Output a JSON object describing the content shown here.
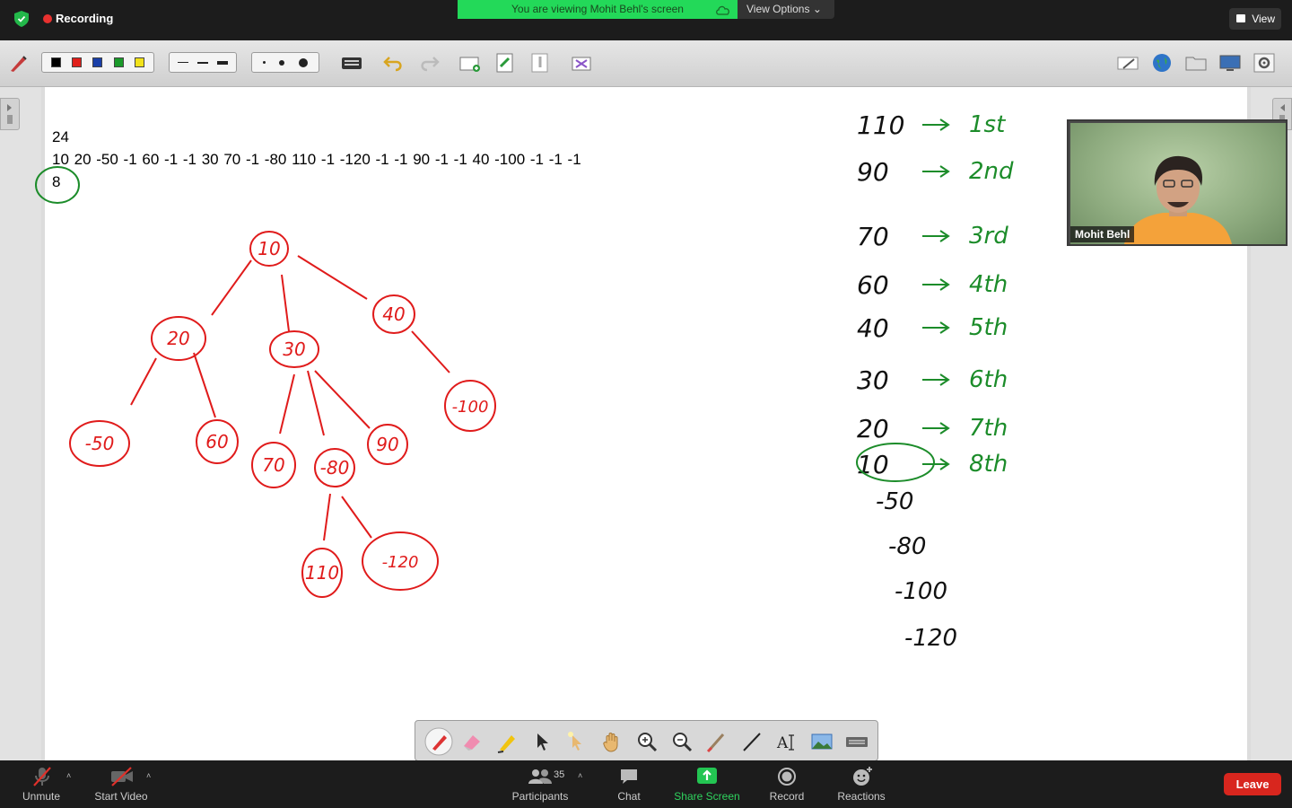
{
  "topbar": {
    "recording_label": "Recording",
    "viewing_banner": "You are viewing Mohit Behl's screen",
    "view_options_label": "View Options ⌄",
    "view_button_label": "View"
  },
  "toolbar": {
    "colors": [
      "#000000",
      "#e0201b",
      "#1a3fa8",
      "#1a9a2a",
      "#f2e21a"
    ],
    "line_widths": [
      "thin",
      "medium",
      "thick"
    ],
    "dot_sizes": [
      "small",
      "medium",
      "large"
    ]
  },
  "whiteboard": {
    "count_text": "24",
    "input_text": "10 20 -50 -1 60 -1 -1 30 70 -1 -80 110 -1 -120 -1 -1 90 -1 -1 40 -100 -1 -1 -1",
    "k_text": "8",
    "tree_nodes": [
      "10",
      "20",
      "30",
      "40",
      "-50",
      "60",
      "70",
      "-80",
      "90",
      "-100",
      "110",
      "-120"
    ],
    "ranking": [
      {
        "value": "110",
        "rank": "1st"
      },
      {
        "value": "90",
        "rank": "2nd"
      },
      {
        "value": "70",
        "rank": "3rd"
      },
      {
        "value": "60",
        "rank": "4th"
      },
      {
        "value": "40",
        "rank": "5th"
      },
      {
        "value": "30",
        "rank": "6th"
      },
      {
        "value": "20",
        "rank": "7th"
      },
      {
        "value": "10",
        "rank": "8th"
      }
    ],
    "remaining": [
      "-50",
      "-80",
      "-100",
      "-120"
    ],
    "ink_red": "#e01b1b",
    "ink_green": "#1c8c2a"
  },
  "video": {
    "speaker_name": "Mohit Behl"
  },
  "annotation_tools": [
    "pen-icon",
    "eraser-icon",
    "highlighter-icon",
    "arrow-pointer-icon",
    "spotlight-icon",
    "hand-icon",
    "zoom-in-icon",
    "zoom-out-icon",
    "brush-icon",
    "line-icon",
    "text-icon",
    "image-icon",
    "keyboard-icon"
  ],
  "bottombar": {
    "unmute_label": "Unmute",
    "start_video_label": "Start Video",
    "participants_label": "Participants",
    "participants_count": "35",
    "chat_label": "Chat",
    "share_screen_label": "Share Screen",
    "record_label": "Record",
    "reactions_label": "Reactions",
    "leave_label": "Leave"
  }
}
